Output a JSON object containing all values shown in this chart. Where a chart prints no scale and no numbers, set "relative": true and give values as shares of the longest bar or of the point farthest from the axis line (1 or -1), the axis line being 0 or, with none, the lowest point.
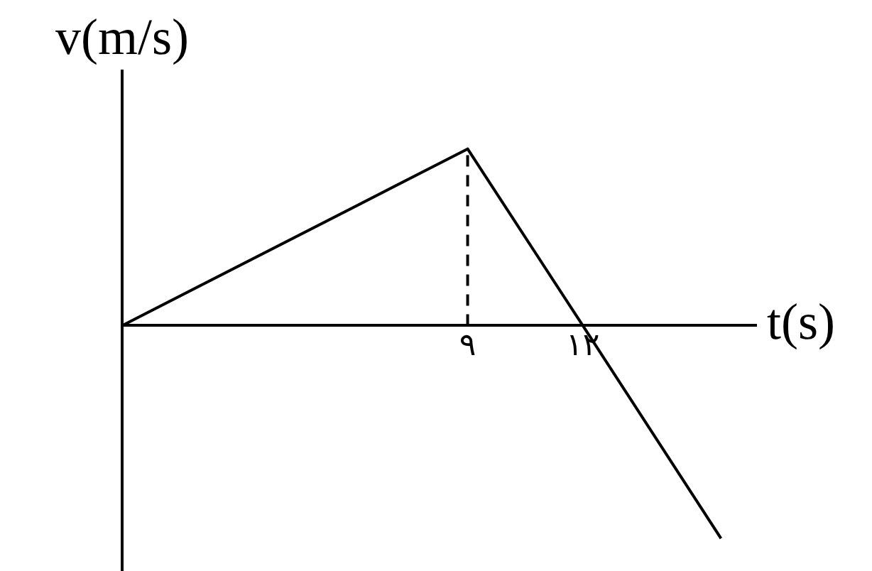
{
  "chart_data": {
    "type": "line",
    "relative": true,
    "xlabel": "t(s)",
    "ylabel": "v(m/s)",
    "xlim": [
      0,
      16.5
    ],
    "xticks": [
      {
        "value": 9,
        "label": "٩"
      },
      {
        "value": 12,
        "label": "١٢"
      }
    ],
    "marker": "none",
    "series": [
      {
        "color": "#000000",
        "x": [
          0,
          9,
          12,
          15.6
        ],
        "values": [
          0,
          0.83,
          0,
          -1
        ]
      },
      {
        "color": "#000000",
        "x": [
          9,
          9
        ],
        "values": [
          0,
          0.83
        ],
        "line_style": "dashed"
      }
    ]
  }
}
